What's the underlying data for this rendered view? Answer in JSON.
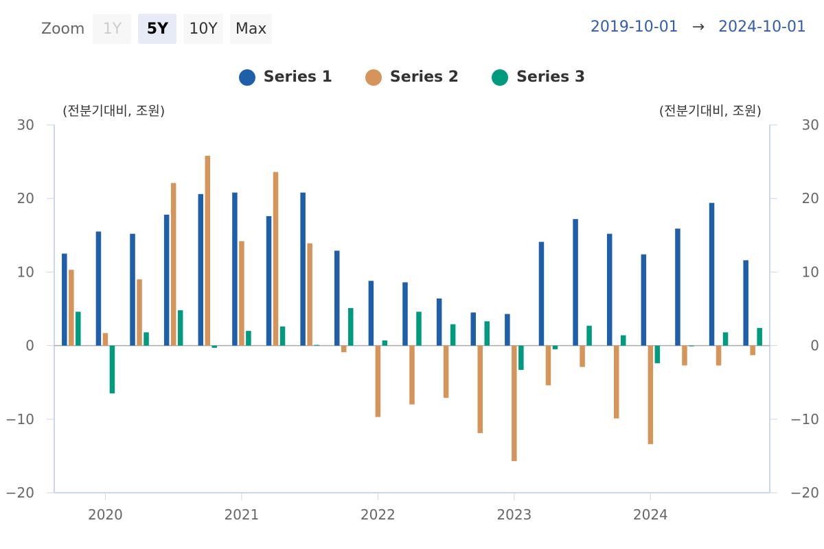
{
  "toolbar": {
    "zoom_label": "Zoom",
    "buttons": [
      {
        "label": "1Y",
        "state": "disabled"
      },
      {
        "label": "5Y",
        "state": "selected"
      },
      {
        "label": "10Y",
        "state": "normal"
      },
      {
        "label": "Max",
        "state": "normal"
      }
    ],
    "range_from": "2019-10-01",
    "range_arrow": "→",
    "range_to": "2024-10-01"
  },
  "chart_data": {
    "type": "bar",
    "left_unit": "(전분기대비, 조원)",
    "right_unit": "(전분기대비, 조원)",
    "ylim": [
      -20,
      30
    ],
    "y_ticks": [
      30,
      20,
      10,
      0,
      -10,
      -20
    ],
    "x_tick_labels": [
      "2020",
      "2021",
      "2022",
      "2023",
      "2024"
    ],
    "categories": [
      "2019-10",
      "2020-01",
      "2020-04",
      "2020-07",
      "2020-10",
      "2021-01",
      "2021-04",
      "2021-07",
      "2021-10",
      "2022-01",
      "2022-04",
      "2022-07",
      "2022-10",
      "2023-01",
      "2023-04",
      "2023-07",
      "2023-10",
      "2024-01",
      "2024-04",
      "2024-07",
      "2024-10"
    ],
    "legend_position": "top-center",
    "series": [
      {
        "name": "Series 1",
        "color": "#1f5faa",
        "values": [
          12.5,
          15.5,
          15.2,
          17.8,
          20.6,
          20.8,
          17.6,
          20.8,
          12.9,
          8.8,
          8.6,
          6.4,
          4.5,
          4.3,
          14.1,
          17.2,
          15.2,
          12.4,
          15.9,
          19.4,
          11.6
        ]
      },
      {
        "name": "Series 2",
        "color": "#d59459",
        "values": [
          10.3,
          1.7,
          9.0,
          22.1,
          25.8,
          14.2,
          23.6,
          13.9,
          -0.9,
          -9.7,
          -8.0,
          -7.1,
          -11.9,
          -15.7,
          -5.4,
          -2.9,
          -9.9,
          -13.4,
          -2.7,
          -2.7,
          -1.3
        ]
      },
      {
        "name": "Series 3",
        "color": "#009b7f",
        "values": [
          4.6,
          -6.5,
          1.8,
          4.8,
          -0.3,
          2.0,
          2.6,
          0.1,
          5.1,
          0.7,
          4.6,
          2.9,
          3.3,
          -3.3,
          -0.5,
          2.7,
          1.4,
          -2.4,
          -0.1,
          1.8,
          2.4
        ]
      }
    ]
  }
}
